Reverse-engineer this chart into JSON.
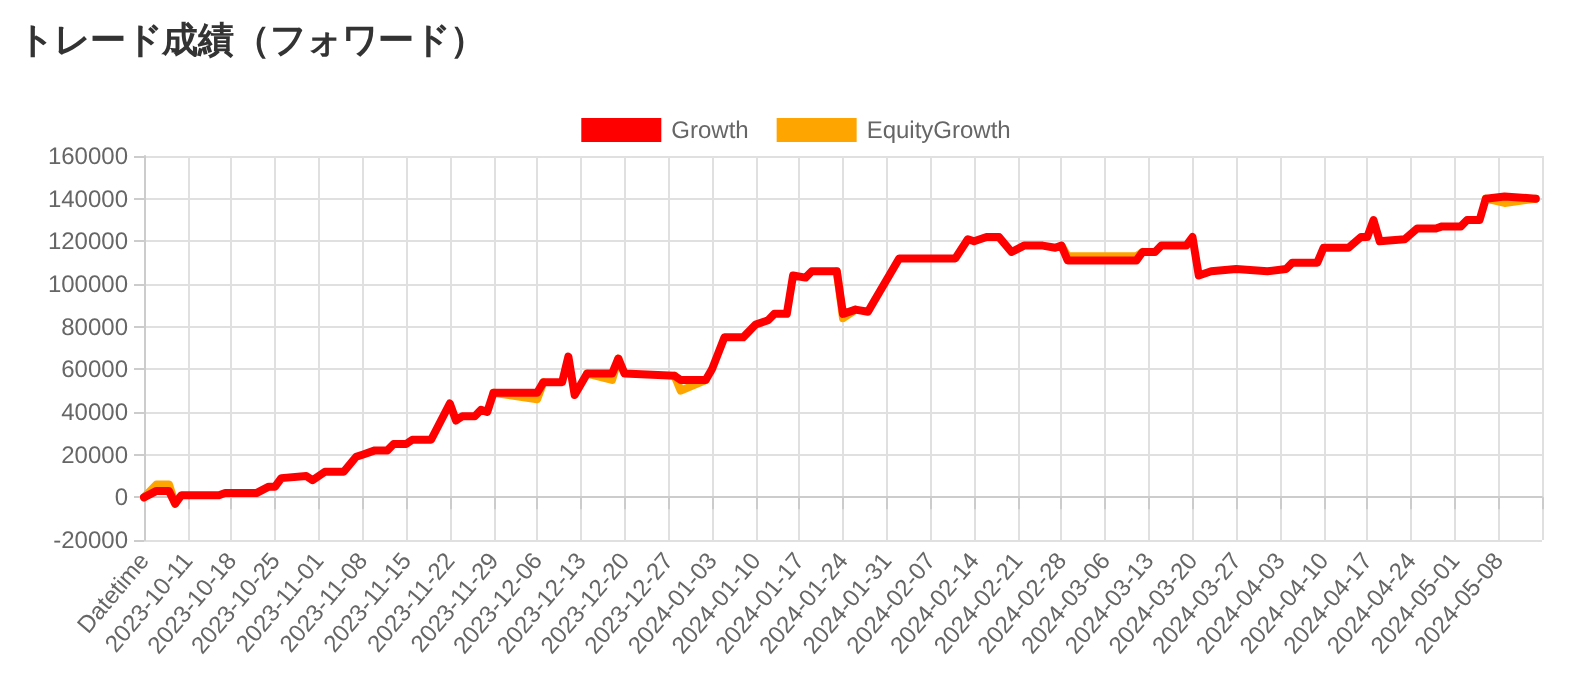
{
  "chart_data": {
    "type": "line",
    "title": "トレード成績（フォワード）",
    "x": [
      "2023-10-04",
      "2023-10-06",
      "2023-10-08",
      "2023-10-09",
      "2023-10-10",
      "2023-10-16",
      "2023-10-17",
      "2023-10-22",
      "2023-10-24",
      "2023-10-25",
      "2023-10-26",
      "2023-10-30",
      "2023-10-31",
      "2023-11-02",
      "2023-11-05",
      "2023-11-07",
      "2023-11-08",
      "2023-11-10",
      "2023-11-12",
      "2023-11-13",
      "2023-11-15",
      "2023-11-16",
      "2023-11-19",
      "2023-11-22",
      "2023-11-23",
      "2023-11-24",
      "2023-11-26",
      "2023-11-27",
      "2023-11-28",
      "2023-11-29",
      "2023-12-06",
      "2023-12-07",
      "2023-12-10",
      "2023-12-11",
      "2023-12-12",
      "2023-12-14",
      "2023-12-18",
      "2023-12-19",
      "2023-12-20",
      "2023-12-28",
      "2023-12-29",
      "2024-01-02",
      "2024-01-03",
      "2024-01-05",
      "2024-01-08",
      "2024-01-10",
      "2024-01-12",
      "2024-01-13",
      "2024-01-15",
      "2024-01-16",
      "2024-01-18",
      "2024-01-19",
      "2024-01-23",
      "2024-01-24",
      "2024-01-26",
      "2024-01-28",
      "2024-01-29",
      "2024-01-31",
      "2024-02-02",
      "2024-02-11",
      "2024-02-13",
      "2024-02-14",
      "2024-02-16",
      "2024-02-18",
      "2024-02-20",
      "2024-02-22",
      "2024-02-25",
      "2024-02-27",
      "2024-02-28",
      "2024-02-29",
      "2024-03-11",
      "2024-03-12",
      "2024-03-14",
      "2024-03-15",
      "2024-03-19",
      "2024-03-20",
      "2024-03-21",
      "2024-03-23",
      "2024-03-27",
      "2024-04-01",
      "2024-04-04",
      "2024-04-05",
      "2024-04-09",
      "2024-04-10",
      "2024-04-14",
      "2024-04-16",
      "2024-04-17",
      "2024-04-18",
      "2024-04-19",
      "2024-04-23",
      "2024-04-25",
      "2024-04-28",
      "2024-04-29",
      "2024-05-02",
      "2024-05-03",
      "2024-05-05",
      "2024-05-06",
      "2024-05-09",
      "2024-05-14"
    ],
    "series": [
      {
        "name": "Growth",
        "color": "#ff0000",
        "values": [
          0,
          3000,
          3000,
          -3000,
          1000,
          1000,
          2000,
          2000,
          5000,
          5000,
          9000,
          10000,
          8000,
          12000,
          12000,
          19000,
          20000,
          22000,
          22000,
          25000,
          25000,
          27000,
          27000,
          44000,
          36000,
          38000,
          38000,
          41000,
          40000,
          49000,
          49000,
          54000,
          54000,
          66000,
          48000,
          58000,
          58000,
          65000,
          58000,
          57000,
          55000,
          55000,
          60000,
          75000,
          75000,
          81000,
          83000,
          86000,
          86000,
          104000,
          103000,
          106000,
          106000,
          86000,
          88000,
          87000,
          92000,
          102000,
          112000,
          112000,
          121000,
          120000,
          122000,
          122000,
          115000,
          118000,
          118000,
          117000,
          118000,
          111000,
          111000,
          115000,
          115000,
          118000,
          118000,
          122000,
          104000,
          106000,
          107000,
          106000,
          107000,
          110000,
          110000,
          117000,
          117000,
          122000,
          122000,
          130000,
          120000,
          121000,
          126000,
          126000,
          127000,
          127000,
          130000,
          130000,
          140000,
          141000,
          140000
        ]
      },
      {
        "name": "EquityGrowth",
        "color": "#ffa500",
        "values": [
          0,
          6000,
          6000,
          -3000,
          null,
          null,
          null,
          null,
          null,
          null,
          null,
          null,
          null,
          null,
          null,
          null,
          null,
          null,
          null,
          null,
          null,
          null,
          null,
          null,
          null,
          null,
          null,
          null,
          null,
          49000,
          46000,
          54000,
          null,
          null,
          null,
          58000,
          55000,
          65000,
          null,
          57000,
          50000,
          55000,
          null,
          null,
          null,
          null,
          null,
          null,
          null,
          null,
          null,
          null,
          106000,
          84000,
          88000,
          null,
          null,
          null,
          null,
          null,
          null,
          null,
          null,
          null,
          null,
          null,
          null,
          null,
          118000,
          113000,
          113000,
          115000,
          null,
          null,
          null,
          null,
          null,
          null,
          null,
          null,
          null,
          null,
          null,
          null,
          null,
          null,
          null,
          null,
          null,
          null,
          null,
          null,
          null,
          null,
          null,
          null,
          140000,
          138000,
          140000
        ]
      }
    ],
    "xlim": [
      "2023-10-04",
      "2024-05-15"
    ],
    "xticks": [
      {
        "value": "2023-10-04",
        "label": "Datetime"
      },
      "2023-10-11",
      "2023-10-18",
      "2023-10-25",
      "2023-11-01",
      "2023-11-08",
      "2023-11-15",
      "2023-11-22",
      "2023-11-29",
      "2023-12-06",
      "2023-12-13",
      "2023-12-20",
      "2023-12-27",
      "2024-01-03",
      "2024-01-10",
      "2024-01-17",
      "2024-01-24",
      "2024-01-31",
      "2024-02-07",
      "2024-02-14",
      "2024-02-21",
      "2024-02-28",
      "2024-03-06",
      "2024-03-13",
      "2024-03-20",
      "2024-03-27",
      "2024-04-03",
      "2024-04-10",
      "2024-04-17",
      "2024-04-24",
      "2024-05-01",
      "2024-05-08",
      {
        "value": "2024-05-15",
        "label": null
      }
    ],
    "ylim": [
      -20000,
      160000
    ],
    "yticks": [
      -20000,
      0,
      20000,
      40000,
      60000,
      80000,
      100000,
      120000,
      140000,
      160000
    ],
    "grid": true,
    "legend": "top",
    "marker": "none",
    "line_style": "solid"
  }
}
